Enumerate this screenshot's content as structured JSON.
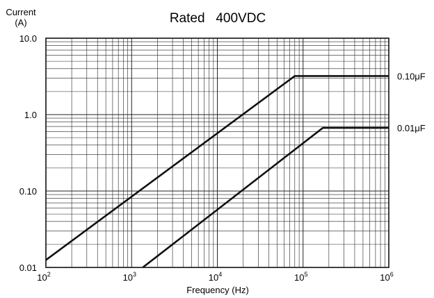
{
  "chart_data": {
    "type": "line",
    "title": "Rated   400VDC",
    "ylabel_line1": "Current",
    "ylabel_line2": "(A)",
    "xlabel": "Frequency (Hz)",
    "xscale": "log",
    "yscale": "log",
    "xlim": [
      100,
      1000000
    ],
    "ylim": [
      0.01,
      10
    ],
    "grid": true,
    "x_ticks": [
      {
        "base": "10",
        "exp": "2"
      },
      {
        "base": "10",
        "exp": "3"
      },
      {
        "base": "10",
        "exp": "4"
      },
      {
        "base": "10",
        "exp": "5"
      },
      {
        "base": "10",
        "exp": "6"
      }
    ],
    "y_ticks": [
      {
        "value": 0.01,
        "label": "0.01"
      },
      {
        "value": 0.1,
        "label": "0.10"
      },
      {
        "value": 1,
        "label": "1.0"
      },
      {
        "value": 10,
        "label": "10.0"
      }
    ],
    "series": [
      {
        "name": "0.10μF",
        "x": [
          100,
          80000,
          1000000
        ],
        "y": [
          0.0125,
          3.2,
          3.2
        ]
      },
      {
        "name": "0.01μF",
        "x": [
          1350,
          170000,
          1000000
        ],
        "y": [
          0.01,
          0.67,
          0.67
        ]
      }
    ]
  }
}
